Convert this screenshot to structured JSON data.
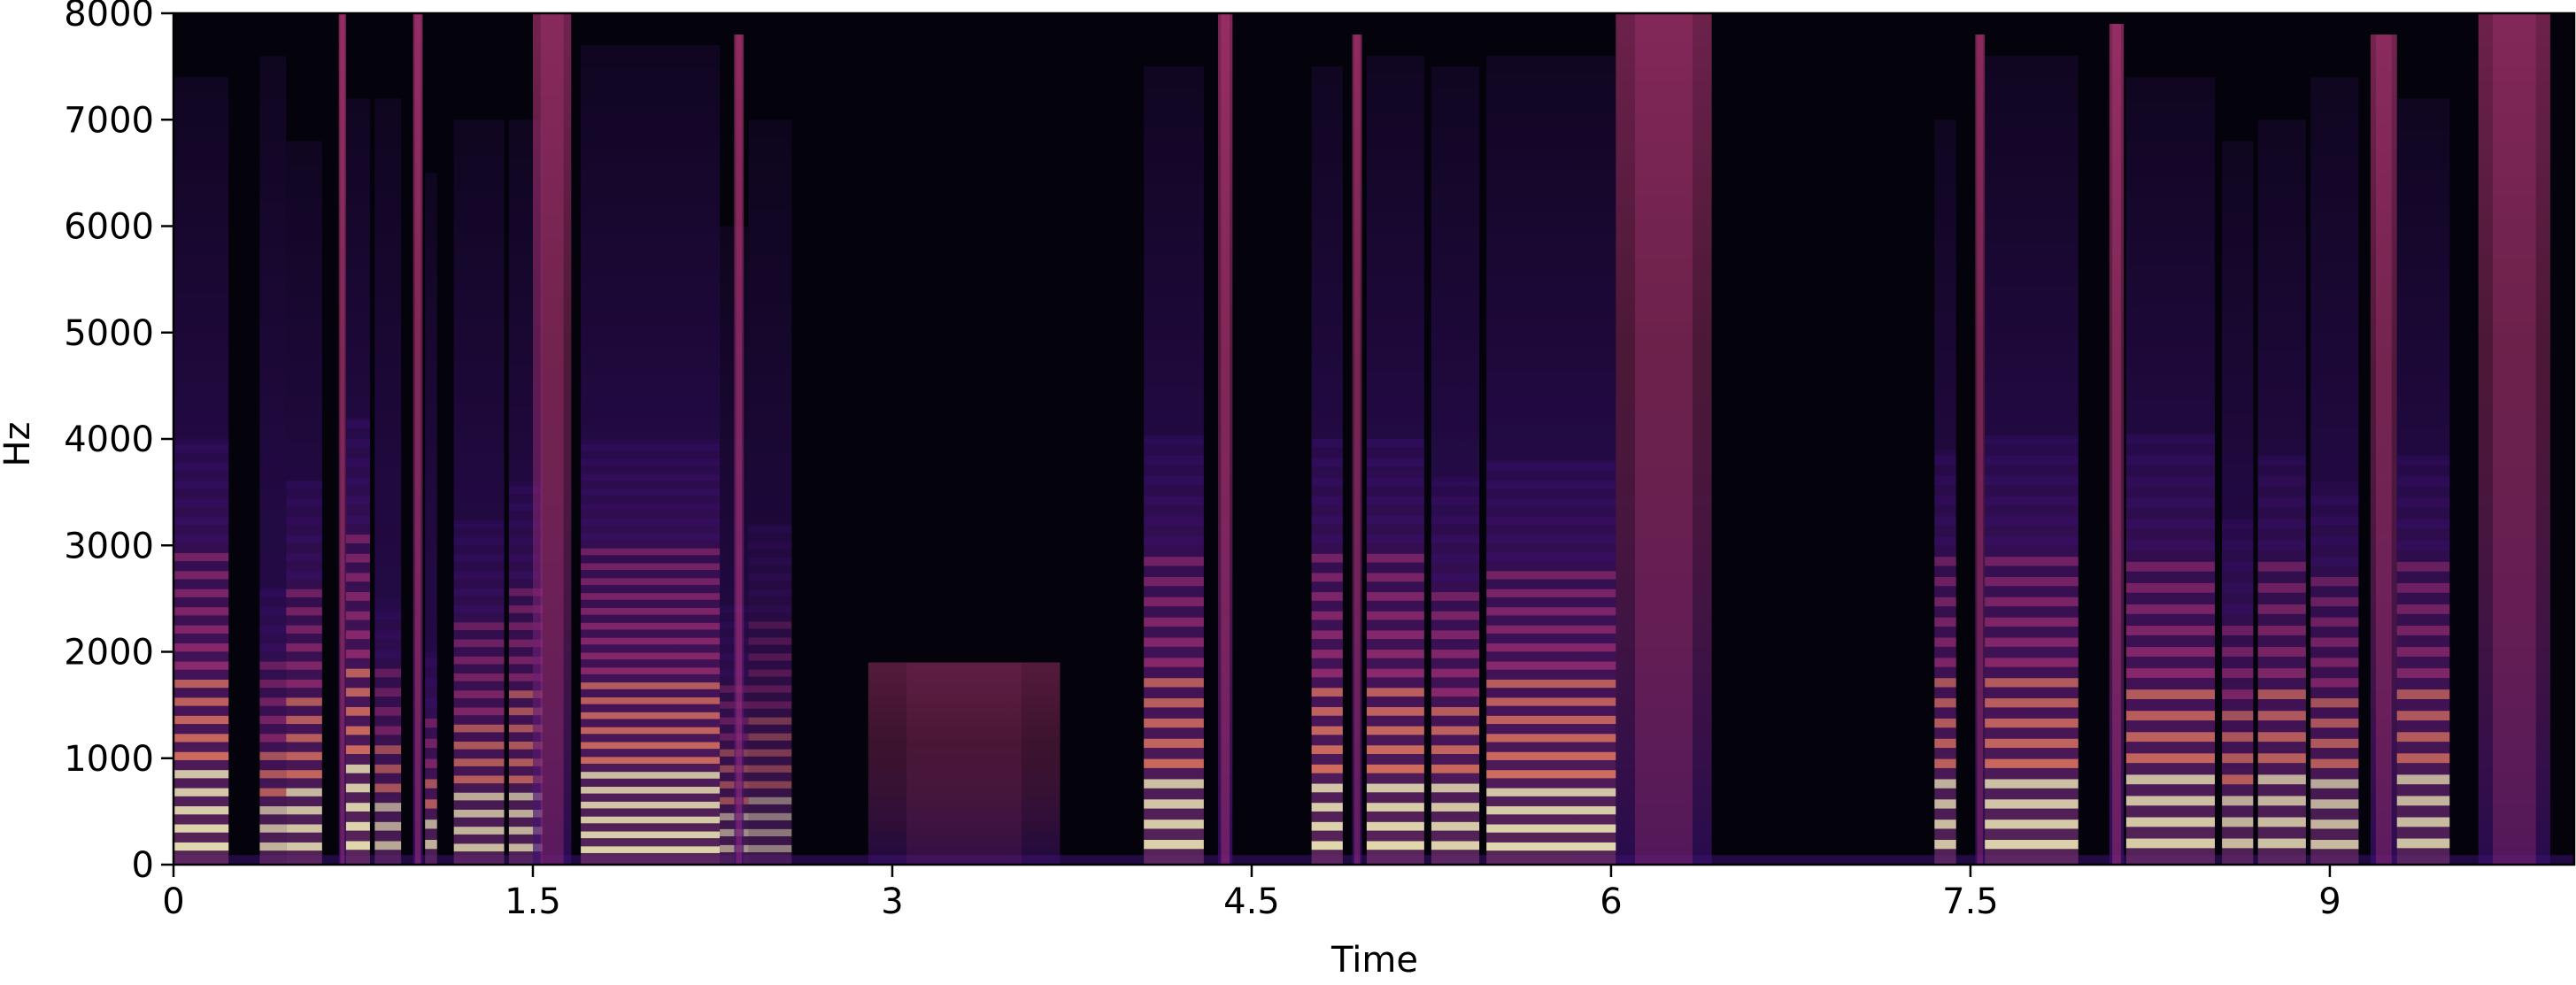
{
  "chart_data": {
    "type": "heatmap",
    "xlabel": "Time",
    "ylabel": "Hz",
    "xlim": [
      0,
      10.02
    ],
    "ylim": [
      0,
      8000
    ],
    "x_ticks": [
      0,
      1.5,
      3,
      4.5,
      6,
      7.5,
      9
    ],
    "x_tick_labels": [
      "0",
      "1.5",
      "3",
      "4.5",
      "6",
      "7.5",
      "9"
    ],
    "y_ticks": [
      0,
      1000,
      2000,
      3000,
      4000,
      5000,
      6000,
      7000,
      8000
    ],
    "y_tick_labels": [
      "0",
      "1000",
      "2000",
      "3000",
      "4000",
      "5000",
      "6000",
      "7000",
      "8000"
    ],
    "grid": false,
    "legend": "none",
    "colormap": "magma",
    "colors": {
      "background": "#04030b",
      "low": "#3b0f70",
      "mid": "#b73779",
      "high": "#fc8961",
      "peak": "#fcfdbf"
    },
    "segments": [
      {
        "start": 0.0,
        "end": 0.23,
        "f0": 170,
        "intensity": 0.85,
        "harmonic_top": 4000,
        "noise_top": 7400
      },
      {
        "start": 0.36,
        "end": 0.47,
        "f0": 170,
        "intensity": 0.7,
        "harmonic_top": 2600,
        "noise_top": 7600
      },
      {
        "start": 0.47,
        "end": 0.62,
        "f0": 170,
        "intensity": 0.78,
        "harmonic_top": 3600,
        "noise_top": 6800
      },
      {
        "start": 0.69,
        "end": 0.72,
        "f0": 0,
        "intensity": 0.8,
        "harmonic_top": 0,
        "noise_top": 8000
      },
      {
        "start": 0.72,
        "end": 0.82,
        "f0": 180,
        "intensity": 0.85,
        "harmonic_top": 4200,
        "noise_top": 7200
      },
      {
        "start": 0.84,
        "end": 0.95,
        "f0": 180,
        "intensity": 0.65,
        "harmonic_top": 2500,
        "noise_top": 7200
      },
      {
        "start": 1.0,
        "end": 1.04,
        "f0": 0,
        "intensity": 0.8,
        "harmonic_top": 0,
        "noise_top": 8000
      },
      {
        "start": 1.05,
        "end": 1.1,
        "f0": 190,
        "intensity": 0.7,
        "harmonic_top": 2000,
        "noise_top": 6500
      },
      {
        "start": 1.17,
        "end": 1.38,
        "f0": 160,
        "intensity": 0.72,
        "harmonic_top": 3200,
        "noise_top": 7000
      },
      {
        "start": 1.4,
        "end": 1.54,
        "f0": 160,
        "intensity": 0.7,
        "harmonic_top": 3600,
        "noise_top": 7000
      },
      {
        "start": 1.5,
        "end": 1.66,
        "f0": 0,
        "intensity": 0.62,
        "harmonic_top": 0,
        "noise_top": 8000
      },
      {
        "start": 1.7,
        "end": 2.28,
        "f0": 140,
        "intensity": 0.82,
        "harmonic_top": 4000,
        "noise_top": 7700
      },
      {
        "start": 2.28,
        "end": 2.4,
        "f0": 150,
        "intensity": 0.55,
        "harmonic_top": 2400,
        "noise_top": 6000
      },
      {
        "start": 2.34,
        "end": 2.38,
        "f0": 0,
        "intensity": 0.7,
        "harmonic_top": 0,
        "noise_top": 7800
      },
      {
        "start": 2.4,
        "end": 2.58,
        "f0": 150,
        "intensity": 0.45,
        "harmonic_top": 3200,
        "noise_top": 7000
      },
      {
        "start": 2.9,
        "end": 3.7,
        "f0": 0,
        "intensity": 0.22,
        "harmonic_top": 0,
        "noise_top": 1900
      },
      {
        "start": 4.05,
        "end": 4.3,
        "f0": 190,
        "intensity": 0.82,
        "harmonic_top": 4000,
        "noise_top": 7500
      },
      {
        "start": 4.36,
        "end": 4.42,
        "f0": 0,
        "intensity": 0.8,
        "harmonic_top": 0,
        "noise_top": 8000
      },
      {
        "start": 4.75,
        "end": 4.88,
        "f0": 180,
        "intensity": 0.85,
        "harmonic_top": 4000,
        "noise_top": 7500
      },
      {
        "start": 4.92,
        "end": 4.96,
        "f0": 0,
        "intensity": 0.7,
        "harmonic_top": 0,
        "noise_top": 7800
      },
      {
        "start": 4.98,
        "end": 5.22,
        "f0": 180,
        "intensity": 0.85,
        "harmonic_top": 4000,
        "noise_top": 7600
      },
      {
        "start": 5.25,
        "end": 5.45,
        "f0": 180,
        "intensity": 0.82,
        "harmonic_top": 3600,
        "noise_top": 7500
      },
      {
        "start": 5.48,
        "end": 6.02,
        "f0": 170,
        "intensity": 0.85,
        "harmonic_top": 3800,
        "noise_top": 7600
      },
      {
        "start": 6.02,
        "end": 6.42,
        "f0": 0,
        "intensity": 0.55,
        "harmonic_top": 0,
        "noise_top": 8000
      },
      {
        "start": 7.35,
        "end": 7.44,
        "f0": 190,
        "intensity": 0.75,
        "harmonic_top": 3900,
        "noise_top": 7000
      },
      {
        "start": 7.52,
        "end": 7.56,
        "f0": 0,
        "intensity": 0.65,
        "harmonic_top": 0,
        "noise_top": 7800
      },
      {
        "start": 7.56,
        "end": 7.95,
        "f0": 190,
        "intensity": 0.82,
        "harmonic_top": 4000,
        "noise_top": 7600
      },
      {
        "start": 8.08,
        "end": 8.14,
        "f0": 0,
        "intensity": 0.78,
        "harmonic_top": 0,
        "noise_top": 7900
      },
      {
        "start": 8.15,
        "end": 8.52,
        "f0": 200,
        "intensity": 0.8,
        "harmonic_top": 4000,
        "noise_top": 7400
      },
      {
        "start": 8.55,
        "end": 8.68,
        "f0": 200,
        "intensity": 0.72,
        "harmonic_top": 3200,
        "noise_top": 6800
      },
      {
        "start": 8.7,
        "end": 8.9,
        "f0": 200,
        "intensity": 0.75,
        "harmonic_top": 3800,
        "noise_top": 7000
      },
      {
        "start": 8.92,
        "end": 9.12,
        "f0": 190,
        "intensity": 0.72,
        "harmonic_top": 3600,
        "noise_top": 7400
      },
      {
        "start": 9.17,
        "end": 9.28,
        "f0": 0,
        "intensity": 0.65,
        "harmonic_top": 0,
        "noise_top": 7800
      },
      {
        "start": 9.28,
        "end": 9.5,
        "f0": 200,
        "intensity": 0.75,
        "harmonic_top": 3800,
        "noise_top": 7200
      },
      {
        "start": 9.62,
        "end": 9.92,
        "f0": 0,
        "intensity": 0.55,
        "harmonic_top": 0,
        "noise_top": 8000
      }
    ]
  }
}
